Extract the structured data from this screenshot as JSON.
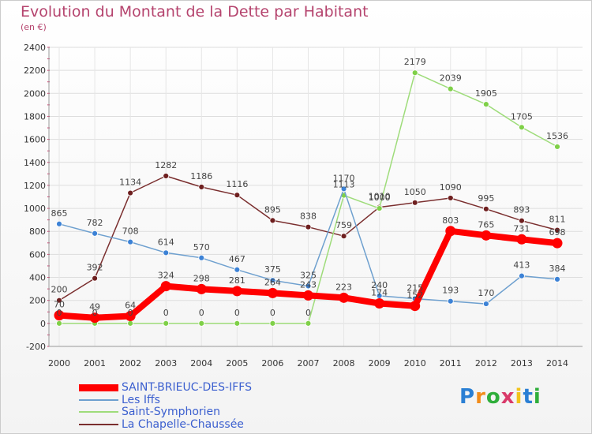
{
  "header": {
    "title": "Evolution du Montant de la Dette par Habitant",
    "subtitle": "(en €)"
  },
  "branding": {
    "logo_text": "Proxiti",
    "logo_colors": [
      "#2a7fd4",
      "#f28c1a",
      "#2fae3b",
      "#d93a6a",
      "#f2c31a",
      "#2a7fd4",
      "#2fae3b"
    ]
  },
  "chart_data": {
    "type": "line",
    "x": [
      2000,
      2001,
      2002,
      2003,
      2004,
      2005,
      2006,
      2007,
      2008,
      2009,
      2010,
      2011,
      2012,
      2013,
      2014
    ],
    "ylim": [
      -200,
      2400
    ],
    "yticks": [
      -200,
      0,
      200,
      400,
      600,
      800,
      1000,
      1200,
      1400,
      1600,
      1800,
      2000,
      2200,
      2400
    ],
    "grid": true,
    "legend_position": "bottom-left",
    "series": [
      {
        "name": "SAINT-BRIEUC-DES-IFFS",
        "color": "#ff0000",
        "marker_color": "#ff0000",
        "label_color": "#444444",
        "width": 8,
        "values": [
          70,
          49,
          64,
          324,
          298,
          281,
          264,
          243,
          223,
          174,
          152,
          803,
          765,
          731,
          698
        ],
        "labels": [
          "70",
          "49",
          "64",
          "324",
          "298",
          "281",
          "264",
          "243",
          "223",
          "174",
          "152",
          "803",
          "765",
          "731",
          "698"
        ]
      },
      {
        "name": "Les Iffs",
        "color": "#6ea0cf",
        "marker_color": "#3c82d6",
        "label_color": "#444444",
        "width": 1.5,
        "values": [
          865,
          782,
          708,
          614,
          570,
          467,
          375,
          325,
          1170,
          240,
          215,
          193,
          170,
          413,
          384
        ],
        "labels": [
          "865",
          "782",
          "708",
          "614",
          "570",
          "467",
          "375",
          "325",
          "1170",
          "240",
          "215",
          "193",
          "170",
          "413",
          "384"
        ]
      },
      {
        "name": "Saint-Symphorien",
        "color": "#9edc7a",
        "marker_color": "#7fd048",
        "label_color": "#444444",
        "width": 1.5,
        "values": [
          0,
          0,
          0,
          0,
          0,
          0,
          0,
          0,
          1113,
          1000,
          2179,
          2039,
          1905,
          1705,
          1536
        ],
        "labels": [
          "0",
          "0",
          "0",
          "0",
          "0",
          "0",
          "0",
          "0",
          "1113",
          "1000",
          "2179",
          "2039",
          "1905",
          "1705",
          "1536"
        ]
      },
      {
        "name": "La Chapelle-Chaussée",
        "color": "#7a2e2e",
        "marker_color": "#6e1f1f",
        "label_color": "#444444",
        "width": 1.5,
        "values": [
          200,
          392,
          1134,
          1282,
          1186,
          1116,
          895,
          838,
          759,
          1010,
          1050,
          1090,
          995,
          893,
          811
        ],
        "labels": [
          "200",
          "392",
          "1134",
          "1282",
          "1186",
          "1116",
          "895",
          "838",
          "759",
          "1010",
          "1050",
          "1090",
          "995",
          "893",
          "811"
        ]
      }
    ]
  }
}
